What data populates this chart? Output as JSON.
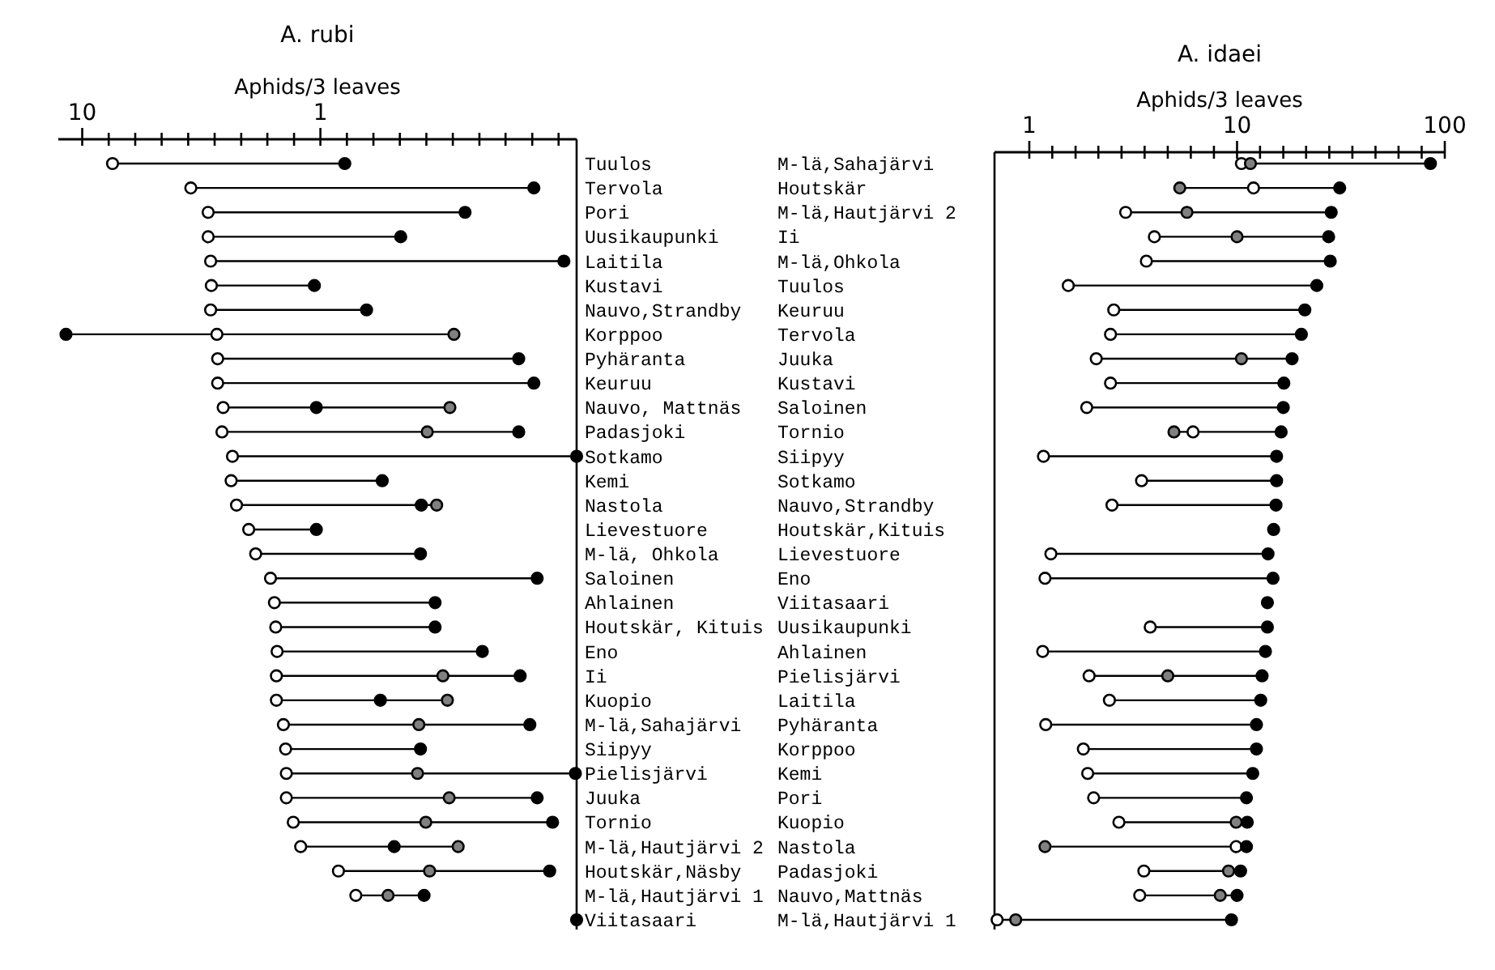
{
  "chart_data": [
    {
      "type": "scatter",
      "title": "A. rubi",
      "xlabel": "Aphids/3 leaves",
      "orientation": "horizontal",
      "log": "x",
      "marker": "circle",
      "xlim": [
        12.6,
        0.084
      ],
      "xticks": [
        10,
        {
          "value": 7.74,
          "label": null
        },
        {
          "value": 5.99,
          "label": null
        },
        {
          "value": 4.64,
          "label": null
        },
        {
          "value": 3.59,
          "label": null
        },
        {
          "value": 2.78,
          "label": null
        },
        {
          "value": 2.15,
          "label": null
        },
        {
          "value": 1.67,
          "label": null
        },
        {
          "value": 1.29,
          "label": null
        },
        1,
        {
          "value": 0.774,
          "label": null
        },
        {
          "value": 0.599,
          "label": null
        },
        {
          "value": 0.464,
          "label": null
        },
        {
          "value": 0.359,
          "label": null
        },
        {
          "value": 0.278,
          "label": null
        },
        {
          "value": 0.215,
          "label": null
        },
        {
          "value": 0.167,
          "label": null
        },
        {
          "value": 0.129,
          "label": null
        },
        {
          "value": 0.1,
          "label": null
        }
      ],
      "categories": [
        "Tuulos",
        "Tervola",
        "Pori",
        "Uusikaupunki",
        "Laitila",
        "Kustavi",
        "Nauvo,Strandby",
        "Korppoo",
        "Pyhäranta",
        "Keuruu",
        "Nauvo, Mattnäs",
        "Padasjoki",
        "Sotkamo",
        "Kemi",
        "Nastola",
        "Lievestuore",
        "M-lä, Ohkola",
        "Saloinen",
        "Ahlainen",
        "Houtskär, Kituis",
        "Eno",
        "Ii",
        "Kuopio",
        "M-lä,Sahajärvi",
        "Siipyy",
        "Pielisjärvi",
        "Juuka",
        "Tornio",
        "M-lä,Hautjärvi 2",
        "Houtskär,Näsby",
        "M-lä,Hautjärvi 1",
        "Viitasaari"
      ],
      "series": [
        {
          "color": "#ffffff",
          "values": [
            7.46,
            3.5,
            2.96,
            2.96,
            2.89,
            2.87,
            2.89,
            2.72,
            2.7,
            2.7,
            2.56,
            2.59,
            2.34,
            2.37,
            2.25,
            2.0,
            1.87,
            1.62,
            1.56,
            1.54,
            1.52,
            1.53,
            1.53,
            1.43,
            1.4,
            1.39,
            1.39,
            1.3,
            1.21,
            0.84,
            0.71,
            null
          ]
        },
        {
          "color": "#808080",
          "values": [
            null,
            null,
            null,
            null,
            null,
            null,
            null,
            0.275,
            null,
            null,
            0.286,
            0.356,
            null,
            null,
            0.325,
            null,
            null,
            null,
            null,
            null,
            null,
            0.306,
            0.293,
            0.386,
            null,
            0.391,
            0.288,
            0.361,
            0.264,
            0.348,
            0.52,
            null
          ]
        },
        {
          "color": "#000000",
          "values": [
            0.79,
            0.127,
            0.247,
            0.46,
            0.095,
            1.06,
            0.64,
            11.7,
            0.147,
            0.127,
            1.04,
            0.147,
            0.084,
            0.55,
            0.377,
            1.04,
            0.38,
            0.123,
            0.33,
            0.33,
            0.209,
            0.145,
            0.56,
            0.132,
            0.38,
            0.085,
            0.123,
            0.106,
            0.49,
            0.109,
            0.367,
            0.084
          ]
        }
      ]
    },
    {
      "type": "scatter",
      "title": "A. idaei",
      "xlabel": "Aphids/3 leaves",
      "orientation": "horizontal",
      "log": "x",
      "marker": "circle",
      "xlim": [
        0.68,
        100
      ],
      "xticks": [
        1,
        {
          "value": 1.29,
          "label": null
        },
        {
          "value": 1.67,
          "label": null
        },
        {
          "value": 2.15,
          "label": null
        },
        {
          "value": 2.78,
          "label": null
        },
        {
          "value": 3.59,
          "label": null
        },
        {
          "value": 4.64,
          "label": null
        },
        {
          "value": 5.99,
          "label": null
        },
        {
          "value": 7.74,
          "label": null
        },
        10,
        {
          "value": 12.9,
          "label": null
        },
        {
          "value": 16.7,
          "label": null
        },
        {
          "value": 21.5,
          "label": null
        },
        {
          "value": 27.8,
          "label": null
        },
        {
          "value": 35.9,
          "label": null
        },
        {
          "value": 46.4,
          "label": null
        },
        {
          "value": 59.9,
          "label": null
        },
        {
          "value": 77.4,
          "label": null
        },
        100
      ],
      "categories": [
        "M-lä,Sahajärvi",
        "Houtskär",
        "M-lä,Hautjärvi 2",
        "Ii",
        "M-lä,Ohkola",
        "Tuulos",
        "Keuruu",
        "Tervola",
        "Juuka",
        "Kustavi",
        "Saloinen",
        "Tornio",
        "Siipyy",
        "Sotkamo",
        "Nauvo,Strandby",
        "Houtskär,Kituis",
        "Lievestuore",
        "Eno",
        "Viitasaari",
        "Uusikaupunki",
        "Ahlainen",
        "Pielisjärvi",
        "Laitila",
        "Pyhäranta",
        "Korppoo",
        "Kemi",
        "Pori",
        "Kuopio",
        "Nastola",
        "Padasjoki",
        "Nauvo,Mattnäs",
        "M-lä,Hautjärvi 1"
      ],
      "series": [
        {
          "color": "#ffffff",
          "values": [
            10.5,
            12.0,
            2.91,
            4.0,
            3.66,
            1.54,
            2.55,
            2.46,
            2.1,
            2.46,
            1.89,
            6.14,
            1.17,
            3.47,
            2.5,
            null,
            1.27,
            1.19,
            null,
            3.82,
            1.16,
            1.94,
            2.43,
            1.2,
            1.82,
            1.91,
            2.04,
            2.7,
            9.9,
            3.56,
            3.4,
            0.7
          ]
        },
        {
          "color": "#808080",
          "values": [
            11.6,
            5.3,
            5.74,
            10.0,
            null,
            null,
            null,
            null,
            10.5,
            null,
            null,
            4.97,
            null,
            null,
            null,
            null,
            null,
            null,
            null,
            null,
            null,
            4.64,
            null,
            null,
            null,
            null,
            null,
            9.9,
            1.19,
            9.1,
            8.3,
            0.86
          ]
        },
        {
          "color": "#000000",
          "values": [
            85.3,
            31.2,
            28.4,
            27.6,
            28.1,
            24.2,
            21.2,
            20.4,
            18.4,
            16.8,
            16.7,
            16.3,
            15.5,
            15.5,
            15.4,
            15.0,
            14.1,
            14.9,
            14.0,
            14.0,
            13.7,
            13.2,
            13.0,
            12.4,
            12.4,
            11.9,
            11.1,
            11.2,
            11.1,
            10.4,
            10.0,
            9.4
          ]
        }
      ]
    }
  ]
}
